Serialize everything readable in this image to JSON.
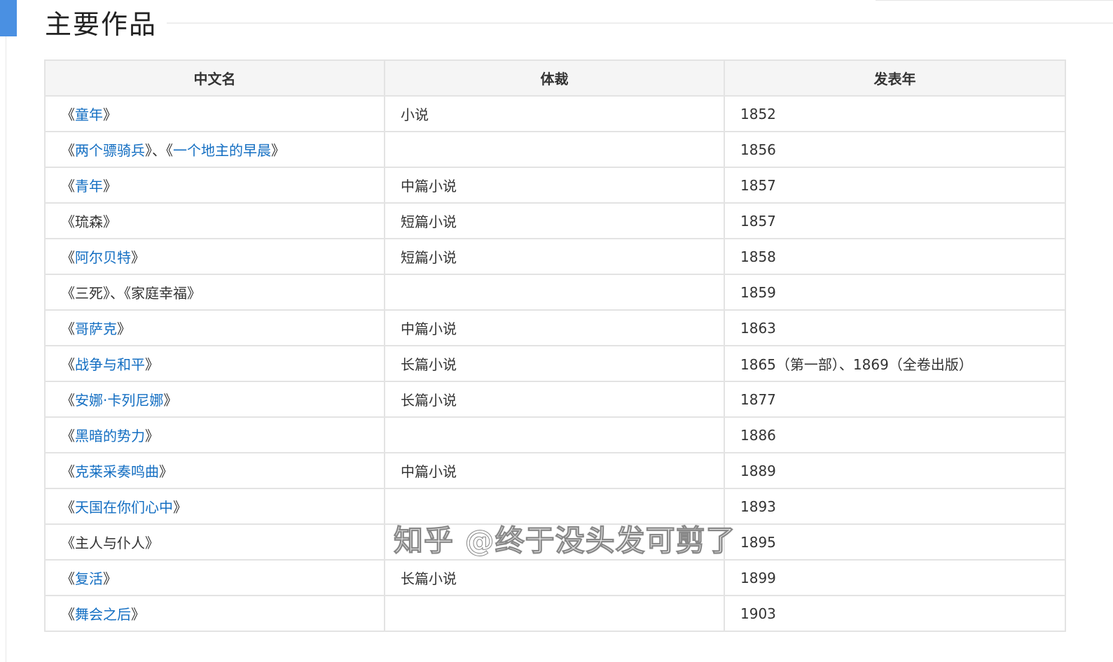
{
  "section_title": "主要作品",
  "columns": [
    "中文名",
    "体裁",
    "发表年"
  ],
  "rows": [
    {
      "parts": [
        [
          "《",
          ""
        ],
        [
          "童年",
          "link"
        ],
        [
          "》",
          ""
        ]
      ],
      "genre": "小说",
      "year": "1852"
    },
    {
      "parts": [
        [
          "《",
          ""
        ],
        [
          "两个骠骑兵",
          "link"
        ],
        [
          "》、《",
          ""
        ],
        [
          "一个地主的早晨",
          "link"
        ],
        [
          "》",
          ""
        ]
      ],
      "genre": "",
      "year": "1856"
    },
    {
      "parts": [
        [
          "《",
          ""
        ],
        [
          "青年",
          "link"
        ],
        [
          "》",
          ""
        ]
      ],
      "genre": "中篇小说",
      "year": "1857"
    },
    {
      "parts": [
        [
          "《琉森》",
          ""
        ]
      ],
      "genre": "短篇小说",
      "year": "1857"
    },
    {
      "parts": [
        [
          "《",
          ""
        ],
        [
          "阿尔贝特",
          "link"
        ],
        [
          "》",
          ""
        ]
      ],
      "genre": "短篇小说",
      "year": "1858"
    },
    {
      "parts": [
        [
          "《三死》、《家庭幸福》",
          ""
        ]
      ],
      "genre": "",
      "year": "1859"
    },
    {
      "parts": [
        [
          "《",
          ""
        ],
        [
          "哥萨克",
          "link"
        ],
        [
          "》",
          ""
        ]
      ],
      "genre": "中篇小说",
      "year": "1863"
    },
    {
      "parts": [
        [
          "《",
          ""
        ],
        [
          "战争与和平",
          "link"
        ],
        [
          "》",
          ""
        ]
      ],
      "genre": "长篇小说",
      "year": "1865（第一部）、1869（全卷出版）"
    },
    {
      "parts": [
        [
          "《",
          ""
        ],
        [
          "安娜·卡列尼娜",
          "link"
        ],
        [
          "》",
          ""
        ]
      ],
      "genre": "长篇小说",
      "year": "1877"
    },
    {
      "parts": [
        [
          "《",
          ""
        ],
        [
          "黑暗的势力",
          "link"
        ],
        [
          "》",
          ""
        ]
      ],
      "genre": "",
      "year": "1886"
    },
    {
      "parts": [
        [
          "《",
          ""
        ],
        [
          "克莱采奏鸣曲",
          "link"
        ],
        [
          "》",
          ""
        ]
      ],
      "genre": "中篇小说",
      "year": "1889"
    },
    {
      "parts": [
        [
          "《",
          ""
        ],
        [
          "天国在你们心中",
          "link"
        ],
        [
          "》",
          ""
        ]
      ],
      "genre": "",
      "year": "1893"
    },
    {
      "parts": [
        [
          "《主人与仆人》",
          ""
        ]
      ],
      "genre": "",
      "year": "1895"
    },
    {
      "parts": [
        [
          "《",
          ""
        ],
        [
          "复活",
          "link"
        ],
        [
          "》",
          ""
        ]
      ],
      "genre": "长篇小说",
      "year": "1899"
    },
    {
      "parts": [
        [
          "《",
          ""
        ],
        [
          "舞会之后",
          "link"
        ],
        [
          "》",
          ""
        ]
      ],
      "genre": "",
      "year": "1903"
    }
  ],
  "watermark": "知乎 @终于没头发可剪了",
  "colors": {
    "accent": "#4a90e2",
    "link": "#136ec2"
  }
}
